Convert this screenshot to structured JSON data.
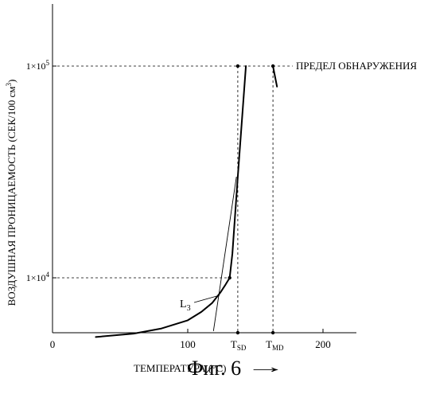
{
  "chart_data": {
    "type": "line",
    "xlabel": "ТЕМПЕРАТУРА (°C)",
    "ylabel": "ВОЗДУШНАЯ ПРОНИЦАЕМОСТЬ (СЕК/100 см",
    "ylabel_sup": "3",
    "ylabel_close": ")",
    "x_ticks": [
      {
        "value": 0,
        "label": "0"
      },
      {
        "value": 100,
        "label": "100"
      },
      {
        "value": 200,
        "label": "200"
      }
    ],
    "y_ticks": [
      {
        "value": 10000,
        "base": "1×10",
        "exp": "4"
      },
      {
        "value": 100000,
        "base": "1×10",
        "exp": "5"
      }
    ],
    "xlim": [
      0,
      225
    ],
    "ylim": [
      5000,
      400000
    ],
    "y_scale": "log",
    "grid": false,
    "series": [
      {
        "name": "",
        "x": [
          32,
          60,
          80,
          100,
          110,
          118,
          124,
          128,
          131,
          133,
          137,
          143
        ],
        "y": [
          5250,
          5450,
          5750,
          6300,
          6900,
          7600,
          8500,
          9300,
          10000,
          13000,
          30000,
          100000
        ]
      },
      {
        "name": "",
        "x": [
          163,
          166
        ],
        "y": [
          100000,
          80000
        ]
      }
    ],
    "tangent_L3": {
      "label": "L",
      "label_sub": "3",
      "x": [
        119,
        136
      ],
      "y": [
        5600,
        30000
      ]
    },
    "markers": [
      {
        "label": "T",
        "sub": "SD",
        "x": 137
      },
      {
        "label": "T",
        "sub": "MD",
        "x": 163
      }
    ],
    "reference_lines": [
      {
        "y": 10000,
        "x_end": 131
      },
      {
        "y": 100000,
        "x_end": 163,
        "label": "ПРЕДЕЛ ОБНАРУЖЕНИЯ"
      }
    ],
    "arrow": "→"
  },
  "caption": "Фиг. 6"
}
